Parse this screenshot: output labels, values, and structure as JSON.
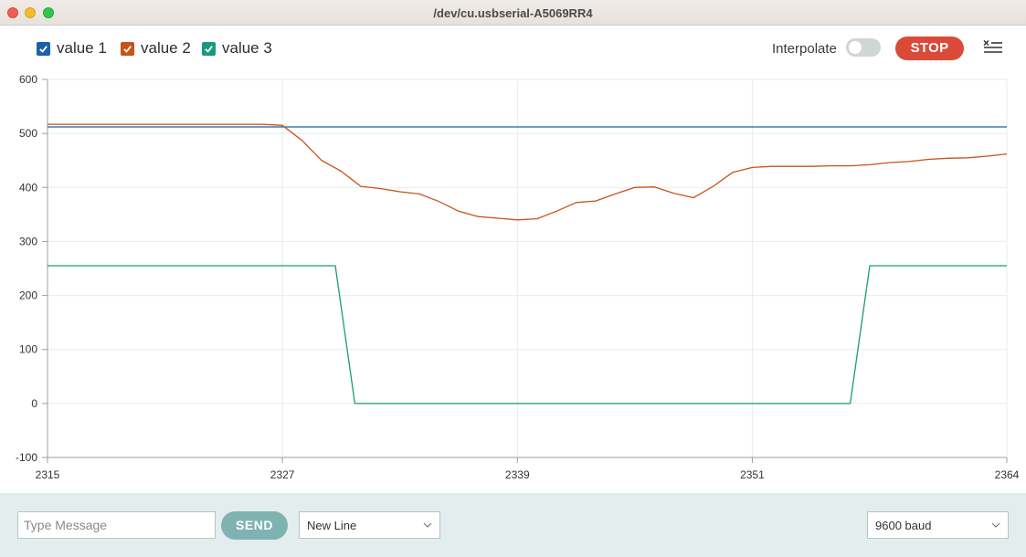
{
  "window": {
    "title": "/dev/cu.usbserial-A5069RR4"
  },
  "toolbar": {
    "legend": [
      {
        "label": "value 1",
        "color": "#1a61a8",
        "checked": true
      },
      {
        "label": "value 2",
        "color": "#c75318",
        "checked": true
      },
      {
        "label": "value 3",
        "color": "#1a9a7a",
        "checked": true
      }
    ],
    "interpolate_label": "Interpolate",
    "interpolate_on": false,
    "stop_label": "STOP",
    "clear_icon": "clear-list-icon"
  },
  "chart_data": {
    "type": "line",
    "x_ticks": [
      2315,
      2327,
      2339,
      2351,
      2364
    ],
    "y_ticks": [
      600,
      500,
      400,
      300,
      200,
      100,
      0,
      -100
    ],
    "xlim": [
      2315,
      2364
    ],
    "ylim": [
      -100,
      600
    ],
    "grid": true,
    "series": [
      {
        "name": "value 1",
        "color": "#1a61a8",
        "points": [
          [
            2315,
            512
          ],
          [
            2364,
            512
          ]
        ]
      },
      {
        "name": "value 2",
        "color": "#c75318",
        "points": [
          [
            2315,
            517
          ],
          [
            2326,
            517
          ],
          [
            2327,
            515
          ],
          [
            2328,
            487
          ],
          [
            2329,
            450
          ],
          [
            2330,
            430
          ],
          [
            2331,
            402
          ],
          [
            2332,
            398
          ],
          [
            2333,
            392
          ],
          [
            2334,
            388
          ],
          [
            2335,
            374
          ],
          [
            2336,
            356
          ],
          [
            2337,
            346
          ],
          [
            2338,
            343
          ],
          [
            2339,
            340
          ],
          [
            2340,
            342
          ],
          [
            2341,
            356
          ],
          [
            2342,
            372
          ],
          [
            2343,
            375
          ],
          [
            2344,
            388
          ],
          [
            2345,
            400
          ],
          [
            2346,
            401
          ],
          [
            2347,
            389
          ],
          [
            2348,
            381
          ],
          [
            2349,
            402
          ],
          [
            2350,
            428
          ],
          [
            2351,
            437
          ],
          [
            2352,
            439
          ],
          [
            2353,
            439
          ],
          [
            2354,
            439
          ],
          [
            2355,
            440
          ],
          [
            2356,
            440
          ],
          [
            2357,
            442
          ],
          [
            2358,
            446
          ],
          [
            2359,
            448
          ],
          [
            2360,
            452
          ],
          [
            2361,
            454
          ],
          [
            2362,
            455
          ],
          [
            2363,
            458
          ],
          [
            2364,
            462
          ]
        ]
      },
      {
        "name": "value 3",
        "color": "#1a9a7a",
        "points": [
          [
            2315,
            255
          ],
          [
            2329.7,
            255
          ],
          [
            2330.7,
            0
          ],
          [
            2356,
            0
          ],
          [
            2357,
            255
          ],
          [
            2364,
            255
          ]
        ]
      }
    ]
  },
  "bottom": {
    "message_placeholder": "Type Message",
    "send_label": "SEND",
    "line_ending": "New Line",
    "baud": "9600 baud"
  }
}
